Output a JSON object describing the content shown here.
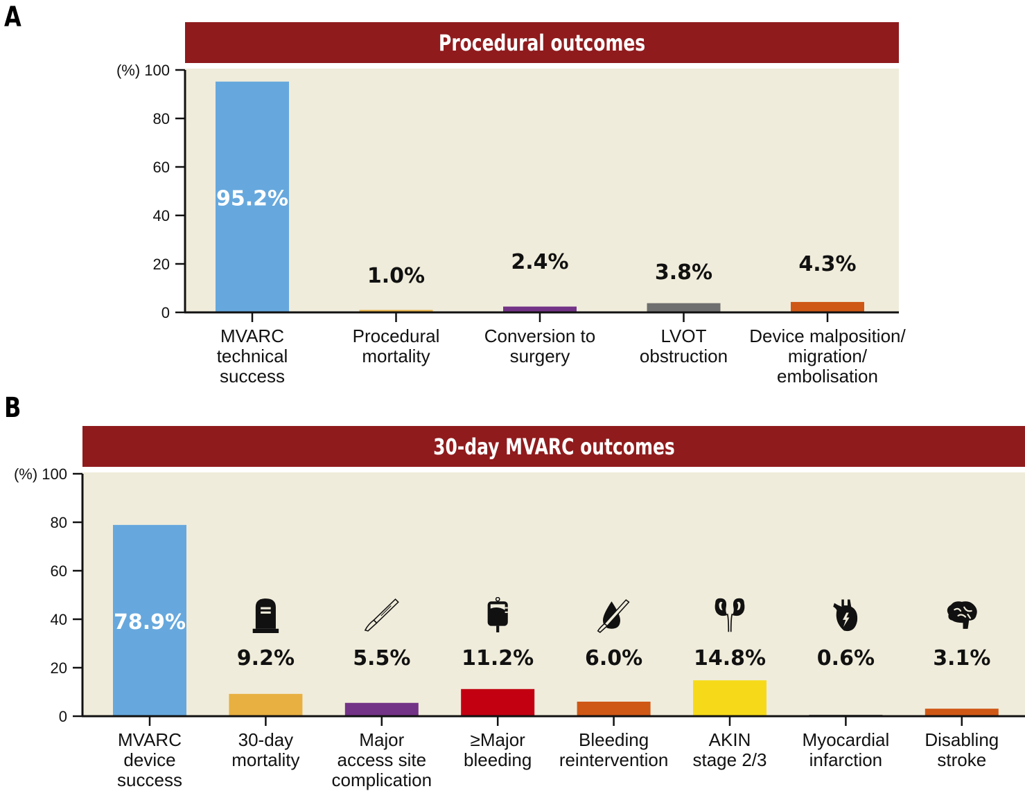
{
  "chart_data": [
    {
      "panel": "A",
      "type": "bar",
      "title": "Procedural outcomes",
      "ylabel": "(%)",
      "ylim": [
        0,
        100
      ],
      "yticks": [
        0,
        20,
        40,
        60,
        80,
        100
      ],
      "grid": false,
      "categories": [
        "MVARC technical success",
        "Procedural mortality",
        "Conversion to surgery",
        "LVOT obstruction",
        "Device malposition/ migration/ embolisation"
      ],
      "category_lines": [
        [
          "MVARC",
          "technical",
          "success"
        ],
        [
          "Procedural",
          "mortality"
        ],
        [
          "Conversion to",
          "surgery"
        ],
        [
          "LVOT",
          "obstruction"
        ],
        [
          "Device malposition/",
          "migration/",
          "embolisation"
        ]
      ],
      "values": [
        95.2,
        1.0,
        2.4,
        3.8,
        4.3
      ],
      "value_labels": [
        "95.2%",
        "1.0%",
        "2.4%",
        "3.8%",
        "4.3%"
      ],
      "colors": [
        "#66a8dd",
        "#e8b041",
        "#733387",
        "#6f6f6f",
        "#cf5816"
      ],
      "icons": []
    },
    {
      "panel": "B",
      "type": "bar",
      "title": "30-day MVARC outcomes",
      "ylabel": "(%)",
      "ylim": [
        0,
        100
      ],
      "yticks": [
        0,
        20,
        40,
        60,
        80,
        100
      ],
      "grid": false,
      "categories": [
        "MVARC device success",
        "30-day mortality",
        "Major access site complication",
        "≥Major bleeding",
        "Bleeding reintervention",
        "AKIN stage 2/3",
        "Myocardial infarction",
        "Disabling stroke"
      ],
      "category_lines": [
        [
          "MVARC",
          "device",
          "success"
        ],
        [
          "30-day",
          "mortality"
        ],
        [
          "Major",
          "access site",
          "complication"
        ],
        [
          "≥Major",
          "bleeding"
        ],
        [
          "Bleeding",
          "reintervention"
        ],
        [
          "AKIN",
          "stage 2/3"
        ],
        [
          "Myocardial",
          "infarction"
        ],
        [
          "Disabling",
          "stroke"
        ]
      ],
      "values": [
        78.9,
        9.2,
        5.5,
        11.2,
        6.0,
        14.8,
        0.6,
        3.1
      ],
      "value_labels": [
        "78.9%",
        "9.2%",
        "5.5%",
        "11.2%",
        "6.0%",
        "14.8%",
        "0.6%",
        "3.1%"
      ],
      "colors": [
        "#66a8dd",
        "#e8b041",
        "#733387",
        "#c20012",
        "#cf5816",
        "#f6da1a",
        "#6f6f6f",
        "#cf5816"
      ],
      "icons": [
        "",
        "tombstone-icon",
        "scalpel-icon",
        "blood-bag-icon",
        "blood-drop-scalpel-icon",
        "kidneys-icon",
        "heart-icon",
        "brain-icon"
      ]
    }
  ],
  "panels": {
    "a_letter": "A",
    "b_letter": "B"
  },
  "style": {
    "banner_color": "#8f1b1d",
    "plot_bg": "#f0ecdb",
    "axis_color": "#111111"
  }
}
